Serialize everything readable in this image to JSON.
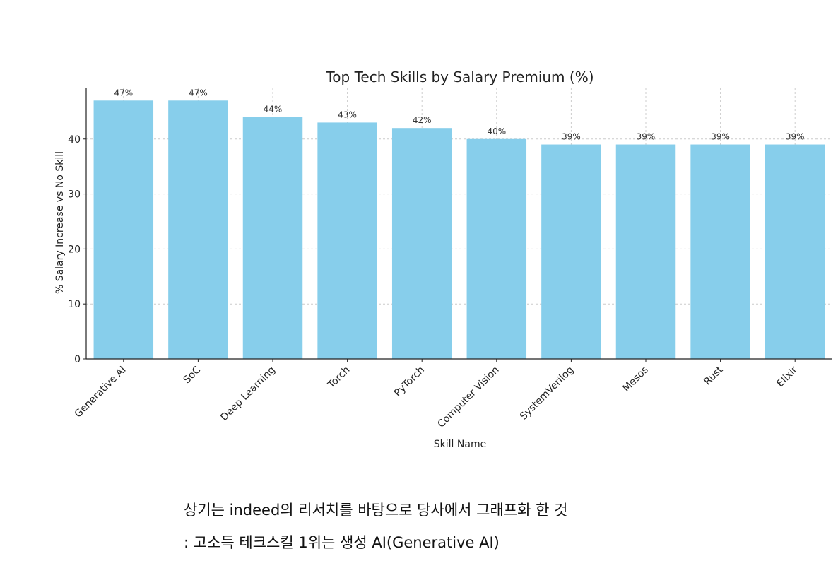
{
  "chart_data": {
    "type": "bar",
    "title": "Top Tech Skills by Salary Premium (%)",
    "xlabel": "Skill Name",
    "ylabel": "% Salary Increase vs No Skill",
    "categories": [
      "Generative AI",
      "SoC",
      "Deep Learning",
      "Torch",
      "PyTorch",
      "Computer Vision",
      "SystemVerilog",
      "Mesos",
      "Rust",
      "Elixir"
    ],
    "values": [
      47,
      47,
      44,
      43,
      42,
      40,
      39,
      39,
      39,
      39
    ],
    "data_labels": [
      "47%",
      "47%",
      "44%",
      "43%",
      "42%",
      "40%",
      "39%",
      "39%",
      "39%",
      "39%"
    ],
    "yticks": [
      0,
      10,
      20,
      30,
      40
    ],
    "ylim": [
      0,
      49.35
    ],
    "grid": true,
    "bar_color": "#87ceeb"
  },
  "caption": {
    "line1": "상기는 indeed의 리서치를 바탕으로 당사에서 그래프화 한 것",
    "line2": ": 고소득 테크스킬 1위는 생성 AI(Generative AI)"
  }
}
